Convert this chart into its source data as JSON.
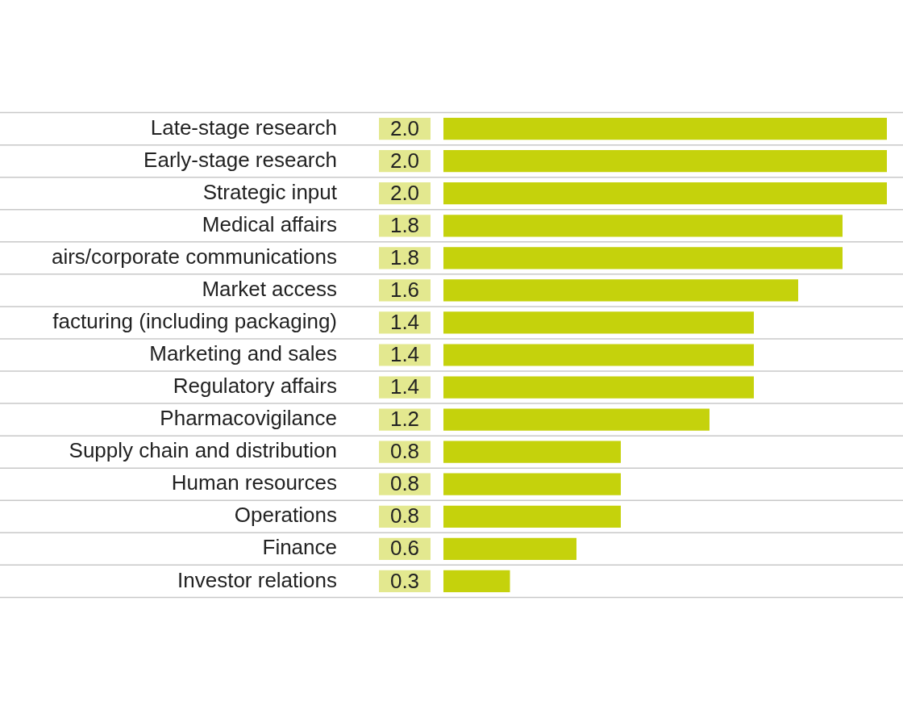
{
  "chart_data": {
    "type": "bar",
    "orientation": "horizontal",
    "categories": [
      "Late-stage research",
      "Early-stage research",
      "Strategic input",
      "Medical affairs",
      "airs/corporate communications",
      "Market access",
      "facturing (including packaging)",
      "Marketing and sales",
      "Regulatory affairs",
      "Pharmacovigilance",
      "Supply chain and distribution",
      "Human resources",
      "Operations",
      "Finance",
      "Investor relations"
    ],
    "values": [
      2.0,
      2.0,
      2.0,
      1.8,
      1.8,
      1.6,
      1.4,
      1.4,
      1.4,
      1.2,
      0.8,
      0.8,
      0.8,
      0.6,
      0.3
    ],
    "value_labels": [
      "2.0",
      "2.0",
      "2.0",
      "1.8",
      "1.8",
      "1.6",
      "1.4",
      "1.4",
      "1.4",
      "1.2",
      "0.8",
      "0.8",
      "0.8",
      "0.6",
      "0.3"
    ],
    "color": "#c5d20c",
    "grid": "y",
    "tick_labels": "y"
  }
}
